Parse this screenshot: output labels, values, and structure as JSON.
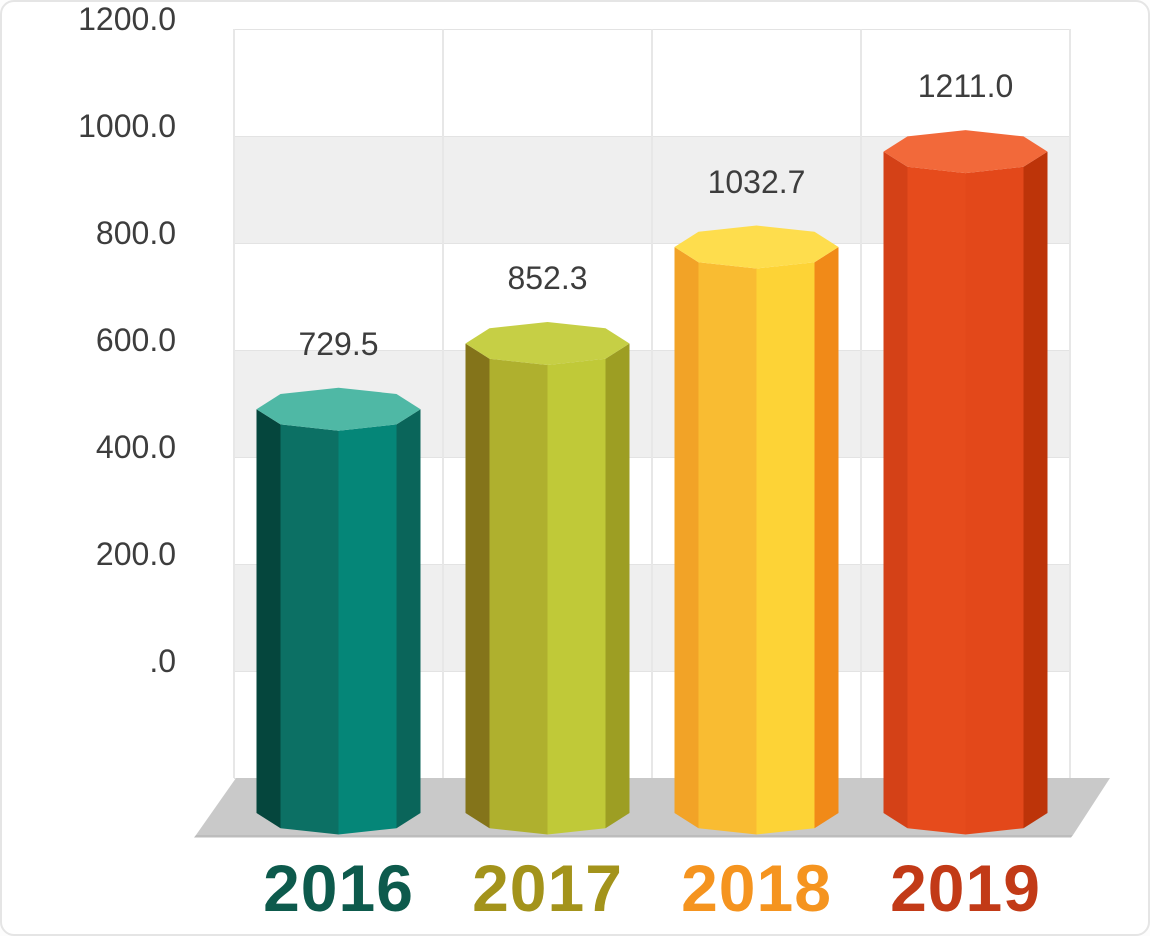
{
  "chart_data": {
    "type": "bar",
    "variant": "3d-octagonal-cylinder",
    "title": "",
    "xlabel": "",
    "ylabel": "",
    "legend": "none",
    "grid": "alternating-horizontal-bands",
    "ylim": [
      0,
      1400
    ],
    "categories": [
      "2016",
      "2017",
      "2018",
      "2019"
    ],
    "values": [
      729.5,
      852.3,
      1032.7,
      1211.0
    ],
    "value_labels": [
      "729.5",
      "852.3",
      "1032.7",
      "1211.0"
    ],
    "y_ticks": [
      "1200.0",
      "1000.0",
      "800.0",
      "600.0",
      "400.0",
      "200.0",
      ".0"
    ],
    "y_tick_values": [
      1200,
      1000,
      800,
      600,
      400,
      200,
      0
    ],
    "bars": [
      {
        "category": "2016",
        "top_color": "#4fb8a5",
        "facet_colors": [
          "#05463d",
          "#0c7064",
          "#058678",
          "#0a655a"
        ],
        "label_color": "#0d5a4c"
      },
      {
        "category": "2017",
        "top_color": "#c6cf45",
        "facet_colors": [
          "#84741a",
          "#afb02e",
          "#c0c938",
          "#9d9e23"
        ],
        "label_color": "#a3931b"
      },
      {
        "category": "2018",
        "top_color": "#fedd4d",
        "facet_colors": [
          "#f2a327",
          "#f9bc32",
          "#fdd336",
          "#f18a18"
        ],
        "label_color": "#f5941f"
      },
      {
        "category": "2019",
        "top_color": "#f2693a",
        "facet_colors": [
          "#d44117",
          "#e64b1c",
          "#e3481a",
          "#bd3409"
        ],
        "label_color": "#c23a17"
      }
    ],
    "colors": {
      "plot_background": "#ffffff",
      "band_fill": "#efefef",
      "gridline": "#e3e3e3",
      "floor_shadow": "#c9c9c9",
      "floor_edge": "#bcbcbc",
      "axis_text": "#3d3d3d"
    }
  }
}
